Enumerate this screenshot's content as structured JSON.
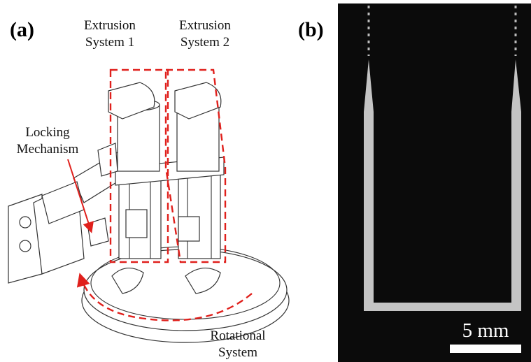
{
  "panels": {
    "a": {
      "label": "(a)",
      "callouts": [
        {
          "lines": [
            "Extrusion",
            "System 1"
          ]
        },
        {
          "lines": [
            "Extrusion",
            "System 2"
          ]
        },
        {
          "lines": [
            "Locking",
            "Mechanism"
          ]
        },
        {
          "lines": [
            "Rotational",
            "System"
          ]
        }
      ]
    },
    "b": {
      "label": "(b)",
      "scale_bar": "5 mm"
    }
  }
}
